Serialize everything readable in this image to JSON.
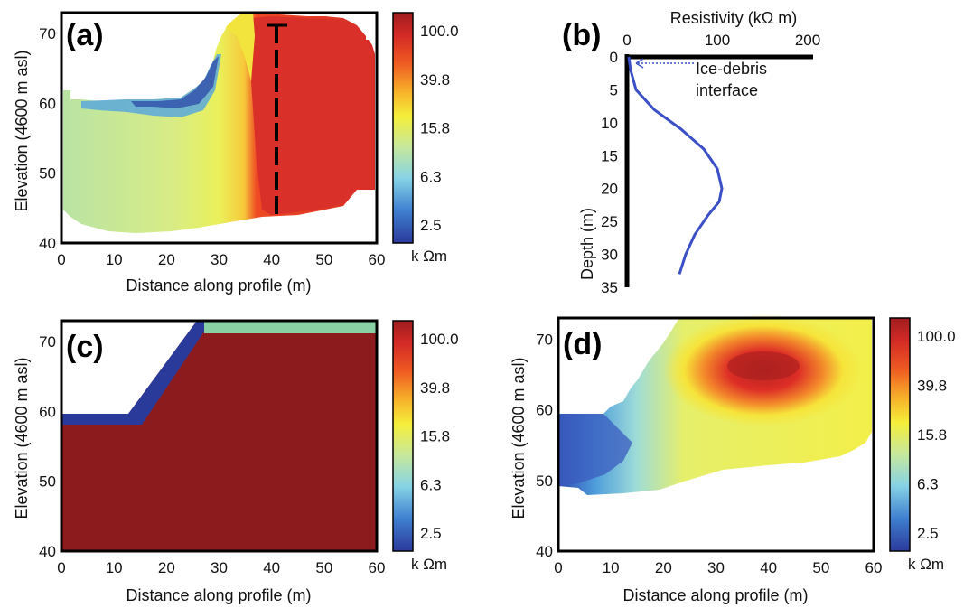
{
  "colorbar": {
    "unit": "k Ωm",
    "ticks": [
      "100.0",
      "39.8",
      "15.8",
      "6.3",
      "2.5"
    ],
    "stops": [
      "#2b3a9c",
      "#3f7fd0",
      "#86d3e6",
      "#c8e89a",
      "#f4ef3a",
      "#f7b02a",
      "#ef5a22",
      "#d42b26",
      "#a01c1f"
    ]
  },
  "chart_data": [
    {
      "panel": "(a)",
      "type": "heatmap",
      "xlabel": "Distance along profile (m)",
      "ylabel": "Elevation (4600 m asl)",
      "xlim": [
        0,
        60
      ],
      "ylim": [
        40,
        73
      ],
      "xticks": [
        "0",
        "10",
        "20",
        "30",
        "40",
        "50",
        "60"
      ],
      "yticks": [
        "40",
        "50",
        "60",
        "70"
      ],
      "colorbar_ticks": [
        "100.0",
        "39.8",
        "15.8",
        "6.3",
        "2.5"
      ],
      "colorbar_unit": "k Ωm",
      "annotations": [
        {
          "type": "dashed-vertical-line",
          "x": 40,
          "y_from": 40,
          "y_to": 71
        }
      ]
    },
    {
      "panel": "(b)",
      "type": "line",
      "xlabel": "Resistivity (kΩ m)",
      "ylabel": "Depth (m)",
      "xlim": [
        0,
        200
      ],
      "ylim": [
        35,
        0
      ],
      "xticks": [
        "0",
        "100",
        "200"
      ],
      "yticks": [
        "0",
        "5",
        "10",
        "15",
        "20",
        "25",
        "30",
        "35"
      ],
      "series": [
        {
          "x": [
            2,
            4,
            10,
            30,
            60,
            85,
            100,
            105,
            102,
            90,
            75,
            65,
            58
          ],
          "y": [
            0,
            2,
            5,
            8,
            11,
            14,
            17,
            20,
            22,
            24,
            27,
            30,
            33
          ]
        }
      ],
      "annotations": [
        {
          "text": "Ice-debris\ninterface",
          "arrow_to": [
            0,
            1
          ]
        }
      ]
    },
    {
      "panel": "(c)",
      "type": "heatmap",
      "xlabel": "Distance along profile (m)",
      "ylabel": "Elevation (4600 m asl)",
      "xlim": [
        0,
        60
      ],
      "ylim": [
        40,
        73
      ],
      "xticks": [
        "0",
        "10",
        "20",
        "30",
        "40",
        "50",
        "60"
      ],
      "yticks": [
        "40",
        "50",
        "60",
        "70"
      ],
      "colorbar_ticks": [
        "100.0",
        "39.8",
        "15.8",
        "6.3",
        "2.5"
      ],
      "colorbar_unit": "k Ωm"
    },
    {
      "panel": "(d)",
      "type": "heatmap",
      "xlabel": "Distance along profile (m)",
      "ylabel": "Elevation (4600 m asl)",
      "xlim": [
        0,
        60
      ],
      "ylim": [
        40,
        73
      ],
      "xticks": [
        "0",
        "10",
        "20",
        "30",
        "40",
        "50",
        "60"
      ],
      "yticks": [
        "40",
        "50",
        "60",
        "70"
      ],
      "colorbar_ticks": [
        "100.0",
        "39.8",
        "15.8",
        "6.3",
        "2.5"
      ],
      "colorbar_unit": "k Ωm"
    }
  ]
}
